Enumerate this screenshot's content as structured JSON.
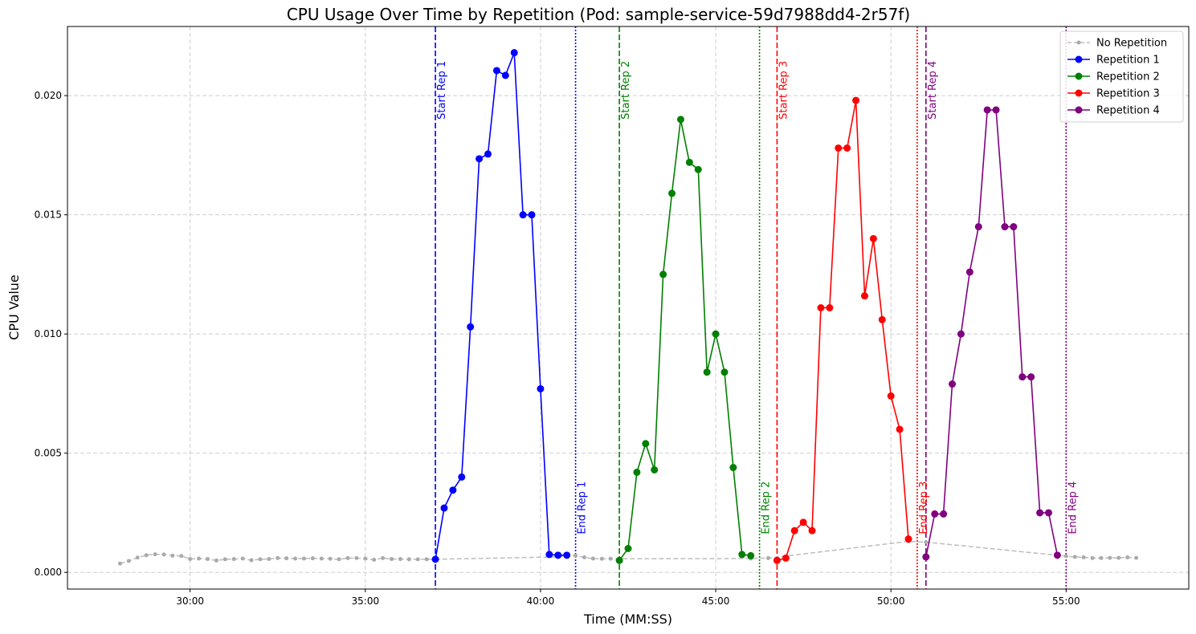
{
  "chart_data": {
    "type": "line",
    "title": "CPU Usage Over Time by Repetition (Pod: sample-service-59d7988dd4-2r57f)",
    "xlabel": "Time (MM:SS)",
    "ylabel": "CPU Value",
    "xlim": [
      "26:30",
      "58:30"
    ],
    "ylim": [
      -0.0007,
      0.0229
    ],
    "x_ticks": [
      "30:00",
      "35:00",
      "40:00",
      "45:00",
      "50:00",
      "55:00"
    ],
    "y_ticks": [
      "0.000",
      "0.005",
      "0.010",
      "0.015",
      "0.020"
    ],
    "grid": true,
    "legend_position": "top-right",
    "colors": {
      "baseline": "#aaaaaa",
      "rep1": "#0000ff",
      "rep2": "#008000",
      "rep3": "#ff0000",
      "rep4": "#800080"
    },
    "baseline": {
      "name": "No Repetition",
      "x": [
        "28:00",
        "28:15",
        "28:30",
        "28:45",
        "29:00",
        "29:15",
        "29:30",
        "29:45",
        "30:00",
        "30:15",
        "30:30",
        "30:45",
        "31:00",
        "31:15",
        "31:30",
        "31:45",
        "32:00",
        "32:15",
        "32:30",
        "32:45",
        "33:00",
        "33:15",
        "33:30",
        "33:45",
        "34:00",
        "34:15",
        "34:30",
        "34:45",
        "35:00",
        "35:15",
        "35:30",
        "35:45",
        "36:00",
        "36:15",
        "36:30",
        "36:45",
        "37:00",
        "40:30",
        "41:00",
        "41:15",
        "41:30",
        "41:45",
        "42:00",
        "46:00",
        "46:30",
        "50:30",
        "51:00",
        "55:00",
        "55:15",
        "55:30",
        "55:45",
        "56:00",
        "56:15",
        "56:30",
        "56:45",
        "57:00"
      ],
      "y": [
        0.00037,
        0.00048,
        0.00062,
        0.00072,
        0.00076,
        0.00075,
        0.0007,
        0.00069,
        0.00056,
        0.00058,
        0.00056,
        0.0005,
        0.00055,
        0.00056,
        0.00058,
        0.00051,
        0.00055,
        0.00056,
        0.0006,
        0.00059,
        0.00058,
        0.00058,
        0.00059,
        0.00058,
        0.00057,
        0.00055,
        0.0006,
        0.0006,
        0.00058,
        0.00053,
        0.0006,
        0.00056,
        0.00056,
        0.00055,
        0.00055,
        0.00055,
        0.00055,
        0.00065,
        0.0007,
        0.00063,
        0.00058,
        0.00057,
        0.00057,
        0.00058,
        0.0006,
        0.0013,
        0.00127,
        0.00068,
        0.00065,
        0.00063,
        0.0006,
        0.0006,
        0.00061,
        0.00061,
        0.00063,
        0.00061
      ]
    },
    "series": [
      {
        "name": "Repetition 1",
        "x": [
          "37:00",
          "37:15",
          "37:30",
          "37:45",
          "38:00",
          "38:15",
          "38:30",
          "38:45",
          "39:00",
          "39:15",
          "39:30",
          "39:45",
          "40:00",
          "40:15",
          "40:30",
          "40:45"
        ],
        "y": [
          0.00055,
          0.0027,
          0.00345,
          0.004,
          0.0103,
          0.01735,
          0.01755,
          0.02105,
          0.02085,
          0.0218,
          0.015,
          0.015,
          0.0077,
          0.00075,
          0.00072,
          0.00072
        ]
      },
      {
        "name": "Repetition 2",
        "x": [
          "42:15",
          "42:30",
          "42:45",
          "43:00",
          "43:15",
          "43:30",
          "43:45",
          "44:00",
          "44:15",
          "44:30",
          "44:45",
          "45:00",
          "45:15",
          "45:30",
          "45:45",
          "46:00"
        ],
        "y": [
          0.0005,
          0.001,
          0.0042,
          0.0054,
          0.0043,
          0.0125,
          0.0159,
          0.019,
          0.0172,
          0.0169,
          0.0084,
          0.01,
          0.0084,
          0.0044,
          0.00075,
          0.0007
        ]
      },
      {
        "name": "Repetition 3",
        "x": [
          "46:45",
          "47:00",
          "47:15",
          "47:30",
          "47:45",
          "48:00",
          "48:15",
          "48:30",
          "48:45",
          "49:00",
          "49:15",
          "49:30",
          "49:45",
          "50:00",
          "50:15",
          "50:30"
        ],
        "y": [
          0.0005,
          0.0006,
          0.00175,
          0.0021,
          0.00175,
          0.0111,
          0.0111,
          0.0178,
          0.0178,
          0.0198,
          0.0116,
          0.014,
          0.0106,
          0.0074,
          0.006,
          0.0014
        ]
      },
      {
        "name": "Repetition 4",
        "x": [
          "51:00",
          "51:15",
          "51:30",
          "51:45",
          "52:00",
          "52:15",
          "52:30",
          "52:45",
          "53:00",
          "53:15",
          "53:30",
          "53:45",
          "54:00",
          "54:15",
          "54:30",
          "54:45"
        ],
        "y": [
          0.00065,
          0.00245,
          0.00245,
          0.0079,
          0.01,
          0.0126,
          0.0145,
          0.0194,
          0.0194,
          0.0145,
          0.0145,
          0.0082,
          0.0082,
          0.0025,
          0.0025,
          0.00072
        ]
      }
    ],
    "markers": [
      {
        "rep": 1,
        "start": "37:00",
        "end": "41:00",
        "start_label": "Start Rep 1",
        "end_label": "End Rep 1"
      },
      {
        "rep": 2,
        "start": "42:15",
        "end": "46:15",
        "start_label": "Start Rep 2",
        "end_label": "End Rep 2"
      },
      {
        "rep": 3,
        "start": "46:45",
        "end": "50:45",
        "start_label": "Start Rep 3",
        "end_label": "End Rep 3"
      },
      {
        "rep": 4,
        "start": "51:00",
        "end": "55:00",
        "start_label": "Start Rep 4",
        "end_label": "End Rep 4"
      }
    ]
  }
}
